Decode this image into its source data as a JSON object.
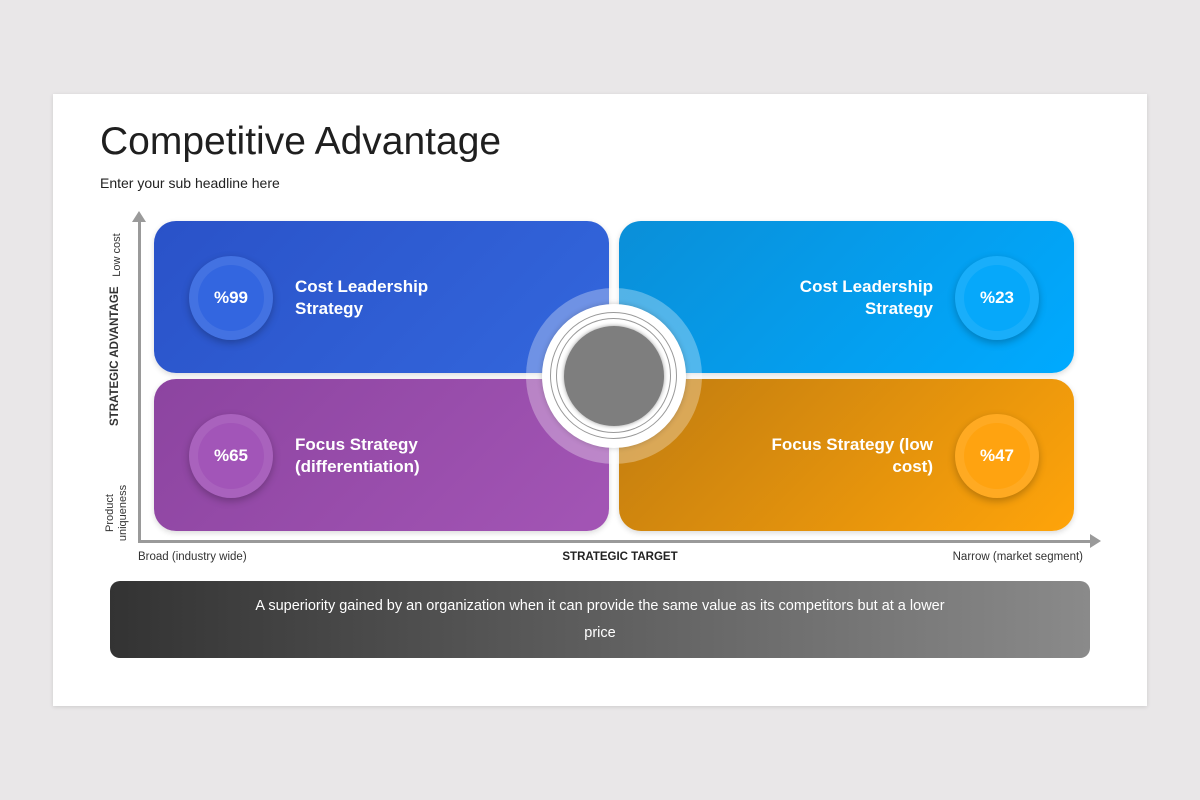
{
  "title": "Competitive Advantage",
  "subtitle": "Enter your sub headline here",
  "y_axis": {
    "title": "STRATEGIC ADVANTAGE",
    "top_label": "Low cost",
    "bottom_label": "Product uniqueness"
  },
  "x_axis": {
    "title": "STRATEGIC TARGET",
    "left_label": "Broad (industry wide)",
    "right_label": "Narrow (market segment)"
  },
  "quadrants": [
    {
      "label": "Cost Leadership Strategy",
      "value": "%99",
      "color": "#2f5fd8"
    },
    {
      "label": "Cost Leadership Strategy",
      "value": "%23",
      "color": "#00a2f0"
    },
    {
      "label": "Focus Strategy (differentiation)",
      "value": "%65",
      "color": "#9a4fb0"
    },
    {
      "label": "Focus Strategy (low cost)",
      "value": "%47",
      "color": "#f39a0c"
    }
  ],
  "footer_text": "A superiority gained by an organization when it can provide the same value as its competitors but at a lower price"
}
